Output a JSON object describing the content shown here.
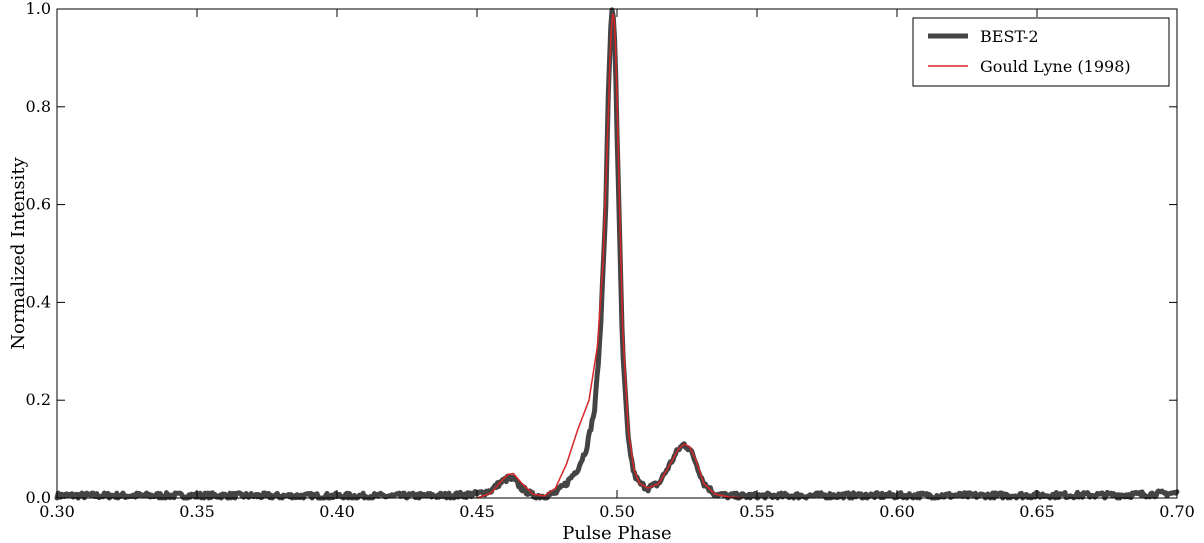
{
  "chart_data": {
    "type": "line",
    "xlabel": "Pulse Phase",
    "ylabel": "Normalized Intensity",
    "xlim": [
      0.3,
      0.7
    ],
    "ylim": [
      0.0,
      1.0
    ],
    "xticks": [
      "0.30",
      "0.35",
      "0.40",
      "0.45",
      "0.50",
      "0.55",
      "0.60",
      "0.65",
      "0.70"
    ],
    "yticks": [
      "0.0",
      "0.2",
      "0.4",
      "0.6",
      "0.8",
      "1.0"
    ],
    "grid": false,
    "legend_position": "top-right",
    "series": [
      {
        "name": "BEST-2",
        "color": "#444444",
        "x": [
          0.3,
          0.32,
          0.34,
          0.36,
          0.38,
          0.4,
          0.42,
          0.44,
          0.45,
          0.455,
          0.458,
          0.461,
          0.463,
          0.466,
          0.47,
          0.474,
          0.478,
          0.482,
          0.486,
          0.489,
          0.492,
          0.494,
          0.496,
          0.497,
          0.498,
          0.4985,
          0.499,
          0.4995,
          0.5,
          0.501,
          0.502,
          0.504,
          0.506,
          0.508,
          0.511,
          0.515,
          0.519,
          0.522,
          0.524,
          0.526,
          0.528,
          0.531,
          0.535,
          0.54,
          0.545,
          0.55,
          0.57,
          0.6,
          0.63,
          0.66,
          0.68,
          0.69,
          0.7
        ],
        "y": [
          0.005,
          0.005,
          0.005,
          0.005,
          0.004,
          0.004,
          0.004,
          0.005,
          0.008,
          0.015,
          0.03,
          0.04,
          0.038,
          0.02,
          0.005,
          0.004,
          0.01,
          0.03,
          0.06,
          0.1,
          0.18,
          0.33,
          0.6,
          0.85,
          0.99,
          1.0,
          0.96,
          0.88,
          0.75,
          0.52,
          0.3,
          0.12,
          0.05,
          0.03,
          0.02,
          0.03,
          0.07,
          0.1,
          0.11,
          0.1,
          0.075,
          0.03,
          0.008,
          0.004,
          0.004,
          0.004,
          0.005,
          0.005,
          0.005,
          0.006,
          0.006,
          0.008,
          0.01
        ]
      },
      {
        "name": "Gould  Lyne (1998)",
        "color": "#d62728",
        "x": [
          0.45,
          0.455,
          0.458,
          0.461,
          0.463,
          0.466,
          0.47,
          0.474,
          0.478,
          0.482,
          0.486,
          0.49,
          0.493,
          0.495,
          0.497,
          0.4975,
          0.498,
          0.4985,
          0.499,
          0.4995,
          0.5,
          0.501,
          0.502,
          0.504,
          0.506,
          0.508,
          0.511,
          0.515,
          0.519,
          0.522,
          0.524,
          0.526,
          0.528,
          0.531,
          0.535,
          0.54,
          0.545
        ],
        "y": [
          0.0,
          0.01,
          0.03,
          0.048,
          0.05,
          0.03,
          0.008,
          0.004,
          0.02,
          0.07,
          0.14,
          0.2,
          0.31,
          0.48,
          0.8,
          0.9,
          0.96,
          0.99,
          0.98,
          0.92,
          0.82,
          0.58,
          0.35,
          0.14,
          0.06,
          0.03,
          0.02,
          0.03,
          0.07,
          0.1,
          0.11,
          0.105,
          0.08,
          0.03,
          0.008,
          0.002,
          0.0
        ]
      }
    ]
  }
}
